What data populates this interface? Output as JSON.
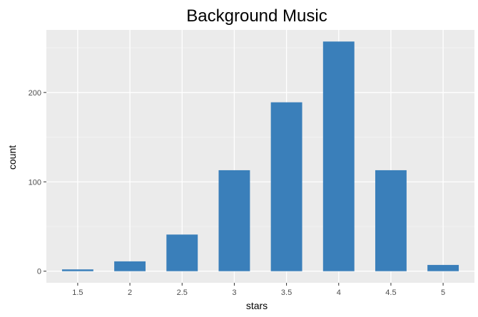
{
  "chart_data": {
    "type": "bar",
    "title": "Background Music",
    "xlabel": "stars",
    "ylabel": "count",
    "categories": [
      "1.5",
      "2",
      "2.5",
      "3",
      "3.5",
      "4",
      "4.5",
      "5"
    ],
    "values": [
      2,
      11,
      41,
      113,
      189,
      257,
      113,
      7
    ],
    "y_ticks": [
      0,
      100,
      200
    ],
    "ylim": [
      -13,
      270
    ],
    "grid": true,
    "legend": "none",
    "colors": {
      "bar": "#3a7fba",
      "panel": "#ebebeb",
      "grid_major": "#ffffff",
      "grid_minor": "#f5f5f5",
      "axis_text": "#4d4d4d"
    }
  }
}
